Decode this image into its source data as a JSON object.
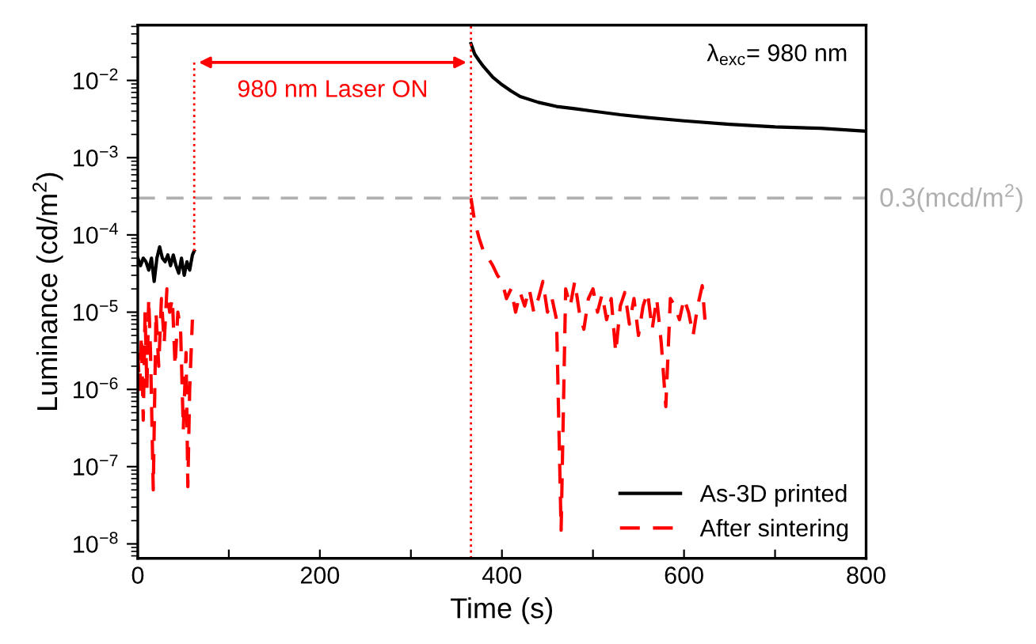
{
  "chart_data": {
    "type": "line",
    "xlabel": "Time (s)",
    "ylabel": "Luminance (cd/m$^{2}$)",
    "log": "y",
    "xlim": [
      0,
      800
    ],
    "xticks": [
      0,
      {
        "value": 100,
        "label": null
      },
      200,
      {
        "value": 300,
        "label": null
      },
      400,
      {
        "value": 500,
        "label": null
      },
      600,
      {
        "value": 700,
        "label": null
      },
      800
    ],
    "ylim": [
      6.5e-09,
      0.052
    ],
    "yticks": [
      {
        "value": 1e-08,
        "label": "10$^{−8}$"
      },
      {
        "value": 1e-07,
        "label": "10$^{−7}$"
      },
      {
        "value": 1e-06,
        "label": "10$^{−6}$"
      },
      {
        "value": 1e-05,
        "label": "10$^{−5}$"
      },
      {
        "value": 0.0001,
        "label": "10$^{−4}$"
      },
      {
        "value": 0.001,
        "label": "10$^{−3}$"
      },
      {
        "value": 0.01,
        "label": "10$^{−2}$"
      }
    ],
    "grid": false,
    "legend": "bottom right",
    "marker": "none",
    "series": [
      {
        "name": "As-3D printed",
        "color": "#000000",
        "line_style": "solid",
        "x": [
          0,
          3,
          6,
          9,
          12,
          15,
          18,
          21,
          24,
          27,
          30,
          33,
          36,
          39,
          42,
          45,
          48,
          51,
          54,
          57,
          60,
          62,
          200,
          366,
          370,
          375,
          380,
          390,
          400,
          410,
          420,
          440,
          460,
          480,
          500,
          530,
          560,
          600,
          650,
          700,
          750,
          800
        ],
        "values": [
          5e-05,
          4e-05,
          5e-05,
          4.5e-05,
          3.5e-05,
          5e-05,
          2.5e-05,
          5e-05,
          7e-05,
          5e-05,
          4.5e-05,
          5.5e-05,
          4e-05,
          5.5e-05,
          4e-05,
          3.2e-05,
          5e-05,
          3e-05,
          4.5e-05,
          3.5e-05,
          5.5e-05,
          6.2e-05,
          null,
          0.03,
          0.022,
          0.018,
          0.015,
          0.011,
          0.0088,
          0.0073,
          0.0062,
          0.0052,
          0.0046,
          0.0043,
          0.004,
          0.0036,
          0.0033,
          0.003,
          0.0027,
          0.0025,
          0.0024,
          0.0022
        ]
      },
      {
        "name": "After sintering",
        "color": "#ff0000",
        "line_style": "dashed",
        "x": [
          0,
          2,
          4,
          6,
          8,
          10,
          12,
          14,
          17,
          20,
          23,
          26,
          29,
          32,
          35,
          38,
          41,
          44,
          47,
          50,
          53,
          55,
          57,
          60,
          200,
          366,
          370,
          375,
          380,
          385,
          390,
          395,
          400,
          405,
          410,
          415,
          420,
          425,
          430,
          435,
          440,
          445,
          450,
          455,
          460,
          465,
          470,
          475,
          480,
          485,
          490,
          495,
          500,
          505,
          510,
          515,
          520,
          525,
          530,
          535,
          540,
          545,
          550,
          555,
          560,
          565,
          570,
          575,
          580,
          585,
          590,
          595,
          600,
          605,
          610,
          615,
          620,
          623
        ],
        "values": [
          3e-06,
          1e-06,
          5e-06,
          4e-07,
          1e-05,
          1e-06,
          1.5e-05,
          3e-06,
          5e-08,
          1e-05,
          2e-06,
          1.5e-05,
          4e-06,
          2e-05,
          1e-05,
          1.5e-05,
          2e-06,
          1e-05,
          6e-06,
          3e-07,
          3e-06,
          5.5e-08,
          1e-06,
          8e-06,
          null,
          0.0003,
          0.00015,
          9e-05,
          6e-05,
          5e-05,
          4e-05,
          3e-05,
          2.5e-05,
          1.5e-05,
          2e-05,
          1e-05,
          1.8e-05,
          1.2e-05,
          2e-05,
          1e-05,
          1.5e-05,
          2.5e-05,
          1e-05,
          1.5e-05,
          8e-06,
          1.5e-08,
          2e-05,
          1.2e-05,
          2.5e-05,
          1e-05,
          6e-06,
          1.5e-05,
          2e-05,
          1e-05,
          1.7e-05,
          8e-06,
          1.5e-05,
          3e-06,
          1.2e-05,
          1.8e-05,
          7e-06,
          1.5e-05,
          5e-06,
          1.2e-05,
          1.8e-05,
          6e-06,
          1.5e-05,
          4e-06,
          6e-07,
          1.5e-05,
          1.2e-05,
          8e-06,
          1.5e-05,
          1e-05,
          5e-06,
          1.2e-05,
          2.2e-05,
          8e-06
        ]
      }
    ],
    "ref_lines": [
      {
        "axis": "y",
        "value": 0.0003,
        "label": "0.3(mcd/m$^{2}$)",
        "color": "#b0b0b0",
        "line_style": "dashed"
      },
      {
        "axis": "x",
        "value": 366,
        "color": "#ff0000",
        "line_style": "dotted"
      }
    ],
    "annotations": [
      "980 nm Laser ON",
      "λ$_{exc}$= 980 nm"
    ]
  }
}
